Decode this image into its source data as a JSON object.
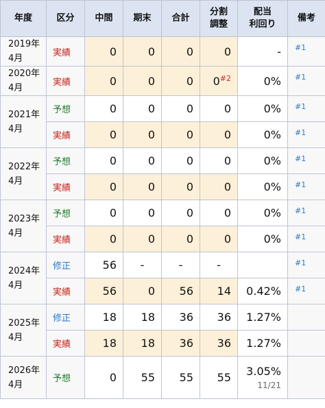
{
  "headers": [
    "年度",
    "区分",
    "中間",
    "期末",
    "合計",
    "分割\n調整",
    "配当\n利回り",
    "備考"
  ],
  "rows": [
    {
      "year": "2019年\n4月",
      "span": 1,
      "kbn": "実績",
      "kc": "red",
      "hl": true,
      "vals": [
        "0",
        "0",
        "0",
        "0"
      ],
      "yield": "-",
      "note": "#1"
    },
    {
      "year": "2020年\n4月",
      "span": 1,
      "kbn": "実績",
      "kc": "red",
      "hl": true,
      "vals": [
        "0",
        "0",
        "0",
        "0"
      ],
      "sup": "#2",
      "yield": "0%",
      "note": "#1"
    },
    {
      "year": "2021年\n4月",
      "span": 2,
      "kbn": "予想",
      "kc": "green",
      "hl": false,
      "vals": [
        "0",
        "0",
        "0",
        "0"
      ],
      "yield": "0%",
      "note": "#1"
    },
    {
      "kbn": "実績",
      "kc": "red",
      "hl": true,
      "vals": [
        "0",
        "0",
        "0",
        "0"
      ],
      "yield": "0%",
      "note": "#1"
    },
    {
      "year": "2022年\n4月",
      "span": 2,
      "kbn": "予想",
      "kc": "green",
      "hl": false,
      "vals": [
        "0",
        "0",
        "0",
        "0"
      ],
      "yield": "0%",
      "note": "#1"
    },
    {
      "kbn": "実績",
      "kc": "red",
      "hl": true,
      "vals": [
        "0",
        "0",
        "0",
        "0"
      ],
      "yield": "0%",
      "note": "#1"
    },
    {
      "year": "2023年\n4月",
      "span": 2,
      "kbn": "予想",
      "kc": "green",
      "hl": false,
      "vals": [
        "0",
        "0",
        "0",
        "0"
      ],
      "yield": "0%",
      "note": "#1"
    },
    {
      "kbn": "実績",
      "kc": "red",
      "hl": true,
      "vals": [
        "0",
        "0",
        "0",
        "0"
      ],
      "yield": "0%",
      "note": "#1"
    },
    {
      "year": "2024年\n4月",
      "span": 2,
      "kbn": "修正",
      "kc": "blue",
      "hl": false,
      "vals": [
        "56",
        "-",
        "-",
        "-"
      ],
      "yield": "",
      "note": "#1"
    },
    {
      "kbn": "実績",
      "kc": "red",
      "hl": true,
      "vals": [
        "56",
        "0",
        "56",
        "14"
      ],
      "yield": "0.42%",
      "note": "#1"
    },
    {
      "year": "2025年\n4月",
      "span": 2,
      "kbn": "修正",
      "kc": "blue",
      "hl": false,
      "vals": [
        "18",
        "18",
        "36",
        "36"
      ],
      "yield": "1.27%",
      "note": ""
    },
    {
      "kbn": "実績",
      "kc": "red",
      "hl": true,
      "vals": [
        "18",
        "18",
        "36",
        "36"
      ],
      "yield": "1.27%",
      "note": ""
    },
    {
      "year": "2026年\n4月",
      "span": 1,
      "kbn": "予想",
      "kc": "green",
      "hl": false,
      "vals": [
        "0",
        "55",
        "55",
        "55"
      ],
      "yield": "3.05%",
      "date": "11/21",
      "note": ""
    }
  ]
}
